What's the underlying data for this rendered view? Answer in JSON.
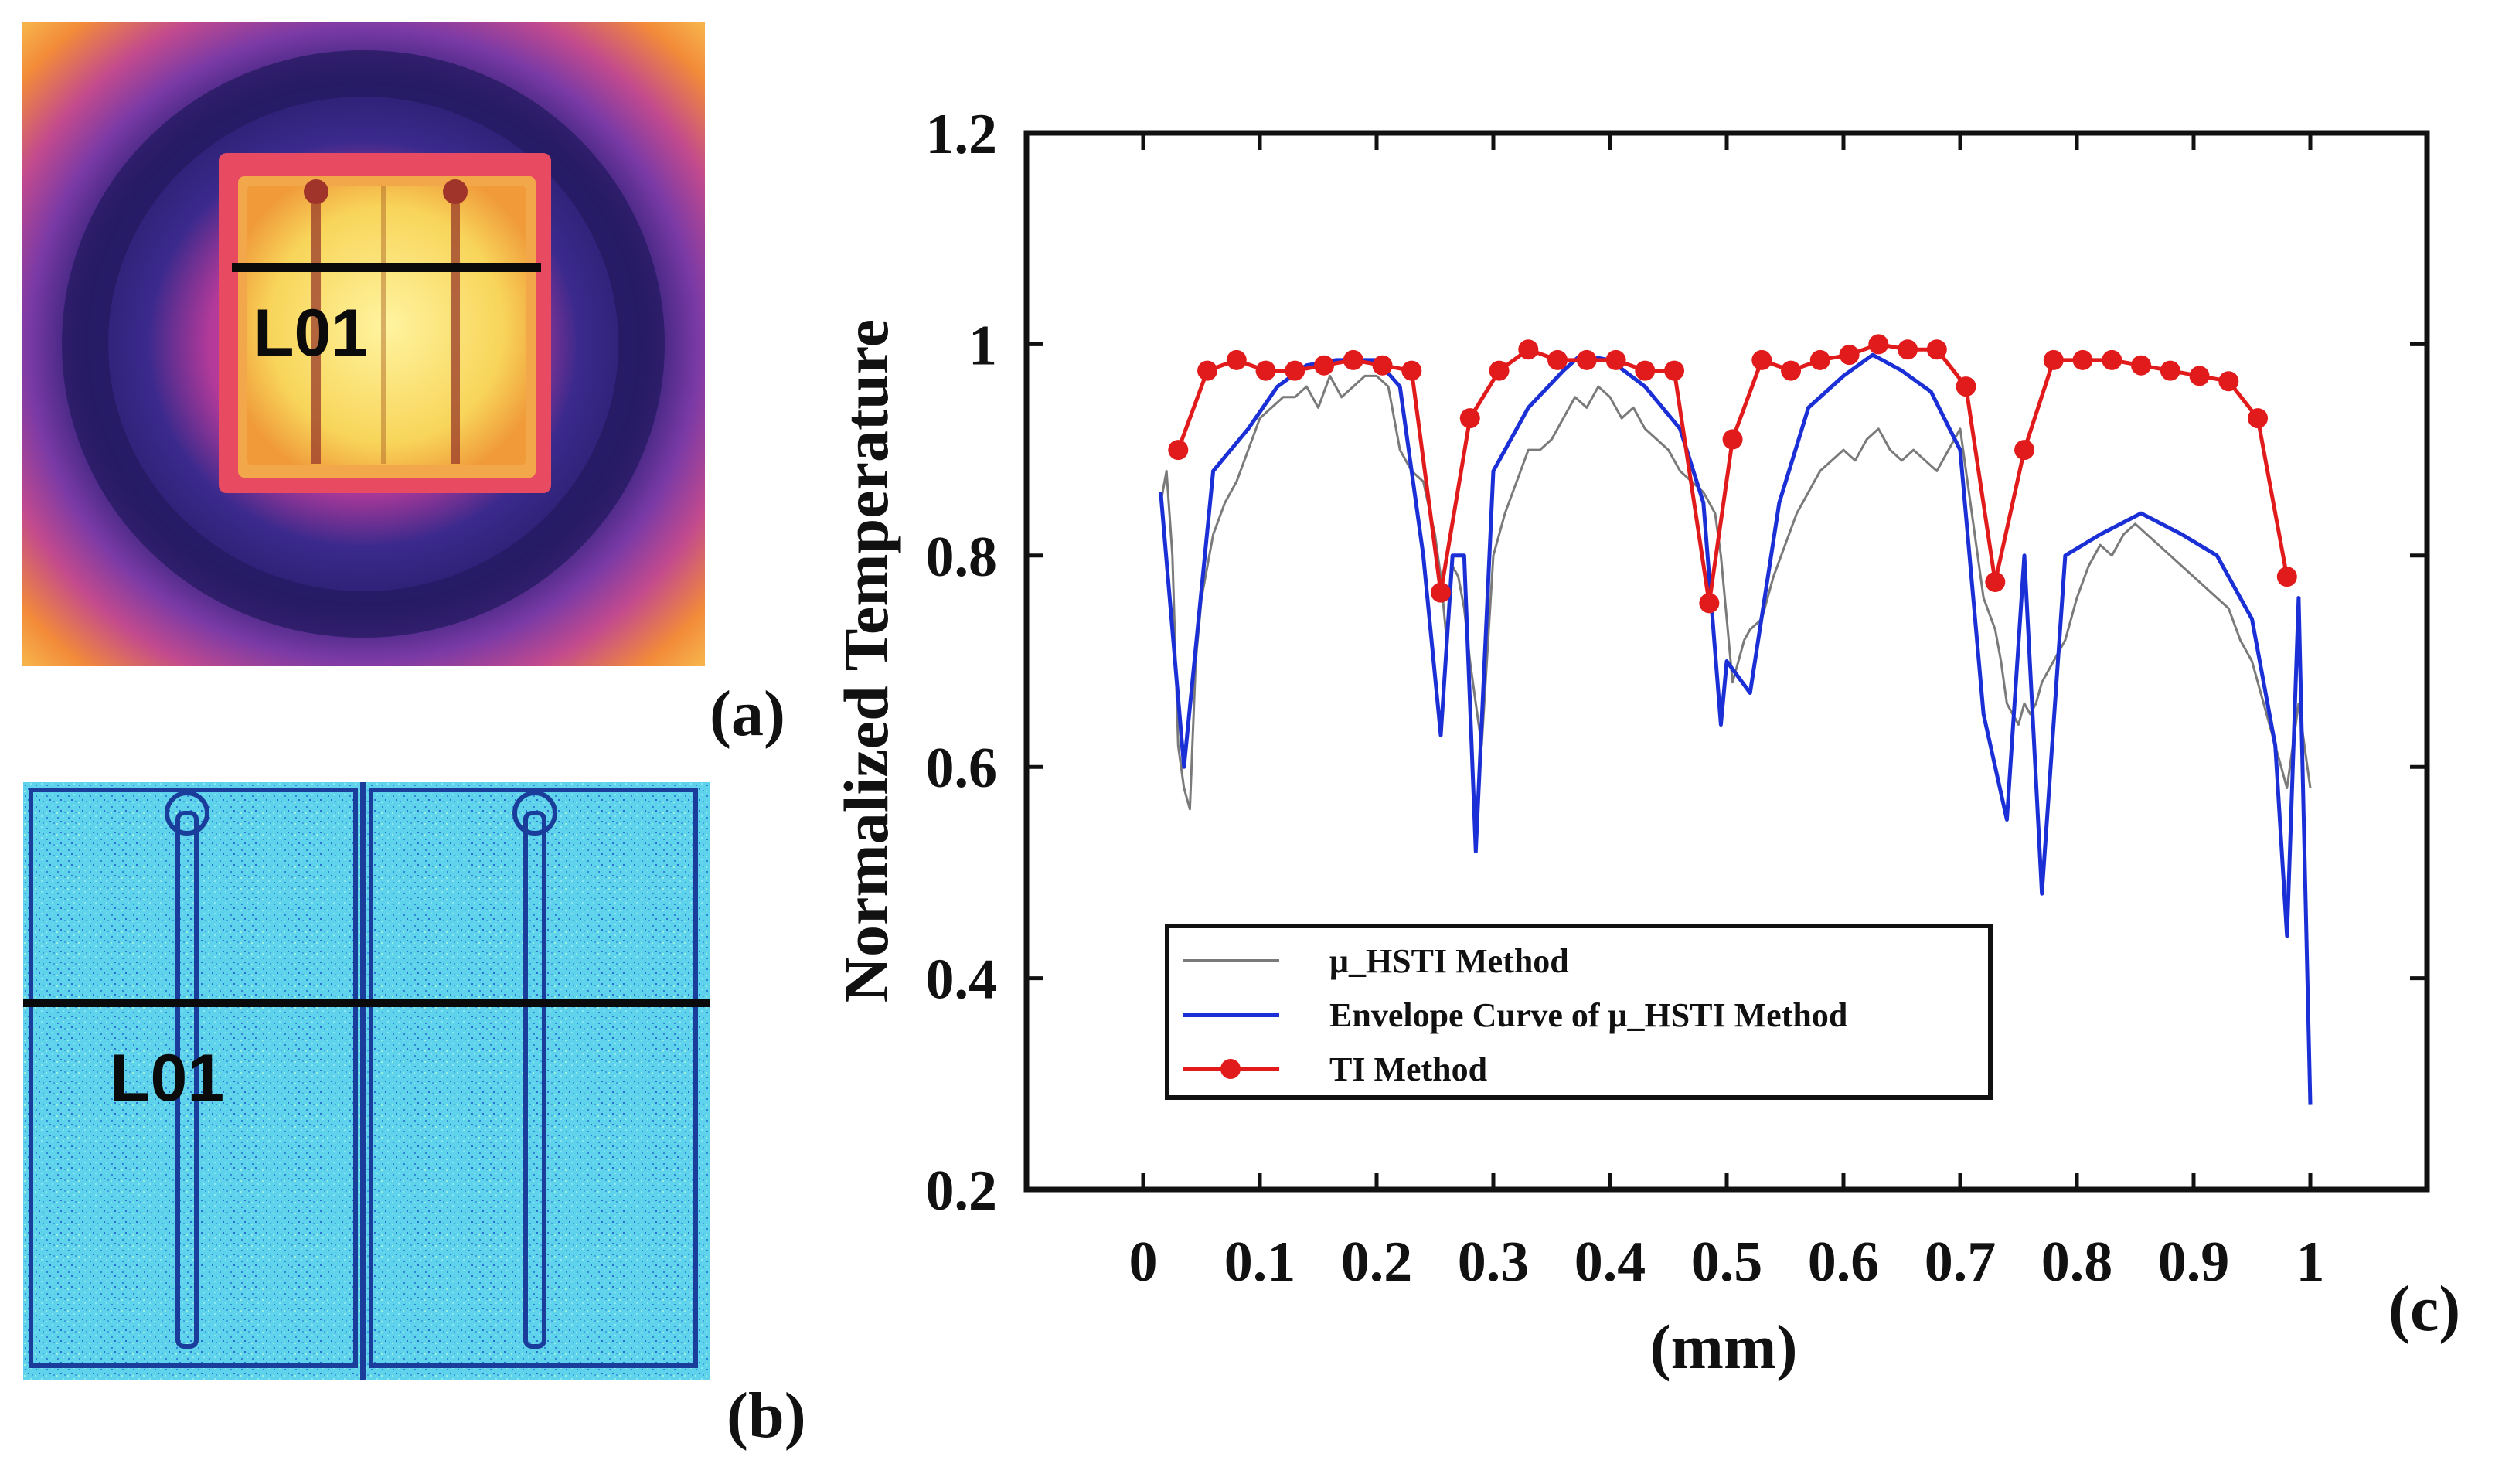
{
  "panels": {
    "a": {
      "label": "(a)",
      "line_label": "L01",
      "colors": {
        "bg_dark": "#241a60",
        "ring": "#6a35a0",
        "glow": "#e0306a",
        "chip": "#f7d65a",
        "chip_core": "#fdf08a"
      }
    },
    "b": {
      "label": "(b)",
      "line_label": "L01",
      "colors": {
        "bg": "#4fd0ea",
        "noise": "#2a6ed0",
        "edge": "#1a3c9a"
      }
    },
    "c": {
      "label": "(c)"
    }
  },
  "chart_data": {
    "type": "line",
    "title": "",
    "xlabel": "(mm)",
    "ylabel": "Normalized Temperature",
    "xlim": [
      -0.1,
      1.1
    ],
    "ylim": [
      0.2,
      1.2
    ],
    "xticks": [
      0,
      0.1,
      0.2,
      0.3,
      0.4,
      0.5,
      0.6,
      0.7,
      0.8,
      0.9,
      1
    ],
    "xtick_labels": [
      "0",
      "0.1",
      "0.2",
      "0.3",
      "0.4",
      "0.5",
      "0.6",
      "0.7",
      "0.8",
      "0.9",
      "1"
    ],
    "yticks": [
      0.2,
      0.4,
      0.6,
      0.8,
      1.0,
      1.2
    ],
    "ytick_labels": [
      "0.2",
      "0.4",
      "0.6",
      "0.8",
      "1",
      "1.2"
    ],
    "legend_position": "bottom-left",
    "series": [
      {
        "name": "μ_HSTI Method",
        "color": "#7a7a7a",
        "style": "noisy-line",
        "x": [
          0.015,
          0.02,
          0.025,
          0.03,
          0.035,
          0.04,
          0.045,
          0.05,
          0.06,
          0.07,
          0.08,
          0.09,
          0.1,
          0.11,
          0.12,
          0.13,
          0.14,
          0.15,
          0.16,
          0.17,
          0.18,
          0.19,
          0.2,
          0.21,
          0.22,
          0.23,
          0.24,
          0.25,
          0.255,
          0.26,
          0.265,
          0.27,
          0.275,
          0.28,
          0.285,
          0.29,
          0.3,
          0.31,
          0.32,
          0.33,
          0.34,
          0.35,
          0.36,
          0.37,
          0.38,
          0.39,
          0.4,
          0.41,
          0.42,
          0.43,
          0.44,
          0.45,
          0.46,
          0.47,
          0.48,
          0.49,
          0.495,
          0.5,
          0.505,
          0.51,
          0.515,
          0.52,
          0.53,
          0.54,
          0.55,
          0.56,
          0.57,
          0.58,
          0.59,
          0.6,
          0.61,
          0.62,
          0.63,
          0.64,
          0.65,
          0.66,
          0.67,
          0.68,
          0.69,
          0.7,
          0.71,
          0.72,
          0.73,
          0.735,
          0.74,
          0.745,
          0.75,
          0.755,
          0.76,
          0.765,
          0.77,
          0.78,
          0.79,
          0.8,
          0.81,
          0.82,
          0.83,
          0.84,
          0.85,
          0.86,
          0.87,
          0.88,
          0.89,
          0.9,
          0.91,
          0.92,
          0.93,
          0.94,
          0.95,
          0.96,
          0.97,
          0.975,
          0.98,
          0.985,
          0.99,
          0.995,
          1.0
        ],
        "y": [
          0.85,
          0.88,
          0.8,
          0.62,
          0.58,
          0.56,
          0.7,
          0.76,
          0.82,
          0.85,
          0.87,
          0.9,
          0.93,
          0.94,
          0.95,
          0.95,
          0.96,
          0.94,
          0.97,
          0.95,
          0.96,
          0.97,
          0.97,
          0.96,
          0.9,
          0.88,
          0.87,
          0.82,
          0.78,
          0.72,
          0.79,
          0.78,
          0.75,
          0.7,
          0.66,
          0.62,
          0.8,
          0.84,
          0.87,
          0.9,
          0.9,
          0.91,
          0.93,
          0.95,
          0.94,
          0.96,
          0.95,
          0.93,
          0.94,
          0.92,
          0.91,
          0.9,
          0.88,
          0.87,
          0.86,
          0.84,
          0.8,
          0.74,
          0.68,
          0.7,
          0.72,
          0.73,
          0.74,
          0.78,
          0.81,
          0.84,
          0.86,
          0.88,
          0.89,
          0.9,
          0.89,
          0.91,
          0.92,
          0.9,
          0.89,
          0.9,
          0.89,
          0.88,
          0.9,
          0.92,
          0.84,
          0.76,
          0.73,
          0.7,
          0.66,
          0.65,
          0.64,
          0.66,
          0.65,
          0.66,
          0.68,
          0.7,
          0.72,
          0.76,
          0.79,
          0.81,
          0.8,
          0.82,
          0.83,
          0.82,
          0.81,
          0.8,
          0.79,
          0.78,
          0.77,
          0.76,
          0.75,
          0.72,
          0.7,
          0.66,
          0.62,
          0.6,
          0.58,
          0.62,
          0.66,
          0.62,
          0.58
        ]
      },
      {
        "name": "Envelope Curve of μ_HSTI Method",
        "color": "#1a2fd6",
        "style": "line",
        "x": [
          0.015,
          0.035,
          0.06,
          0.09,
          0.115,
          0.14,
          0.165,
          0.19,
          0.2,
          0.22,
          0.24,
          0.255,
          0.265,
          0.275,
          0.285,
          0.3,
          0.33,
          0.36,
          0.375,
          0.4,
          0.43,
          0.46,
          0.48,
          0.495,
          0.5,
          0.52,
          0.545,
          0.57,
          0.6,
          0.625,
          0.65,
          0.675,
          0.7,
          0.72,
          0.74,
          0.755,
          0.77,
          0.79,
          0.82,
          0.855,
          0.89,
          0.92,
          0.95,
          0.97,
          0.98,
          0.99,
          1.0
        ],
        "y": [
          0.86,
          0.6,
          0.88,
          0.92,
          0.96,
          0.98,
          0.985,
          0.985,
          0.985,
          0.96,
          0.8,
          0.63,
          0.8,
          0.8,
          0.52,
          0.88,
          0.94,
          0.975,
          0.99,
          0.985,
          0.96,
          0.92,
          0.85,
          0.64,
          0.7,
          0.67,
          0.85,
          0.94,
          0.97,
          0.99,
          0.975,
          0.955,
          0.9,
          0.65,
          0.55,
          0.8,
          0.48,
          0.8,
          0.82,
          0.84,
          0.82,
          0.8,
          0.74,
          0.62,
          0.44,
          0.76,
          0.28
        ]
      },
      {
        "name": "TI Method",
        "color": "#e11b1b",
        "style": "line-markers",
        "x": [
          0.03,
          0.055,
          0.08,
          0.105,
          0.13,
          0.155,
          0.18,
          0.205,
          0.23,
          0.255,
          0.28,
          0.305,
          0.33,
          0.355,
          0.38,
          0.405,
          0.43,
          0.455,
          0.485,
          0.505,
          0.53,
          0.555,
          0.58,
          0.605,
          0.63,
          0.655,
          0.68,
          0.705,
          0.73,
          0.755,
          0.78,
          0.805,
          0.83,
          0.855,
          0.88,
          0.905,
          0.93,
          0.955,
          0.98
        ],
        "y": [
          0.9,
          0.975,
          0.985,
          0.975,
          0.975,
          0.98,
          0.985,
          0.98,
          0.975,
          0.765,
          0.93,
          0.975,
          0.995,
          0.985,
          0.985,
          0.985,
          0.975,
          0.975,
          0.755,
          0.91,
          0.985,
          0.975,
          0.985,
          0.99,
          1.0,
          0.995,
          0.995,
          0.96,
          0.775,
          0.9,
          0.985,
          0.985,
          0.985,
          0.98,
          0.975,
          0.97,
          0.965,
          0.93,
          0.78
        ]
      }
    ]
  }
}
